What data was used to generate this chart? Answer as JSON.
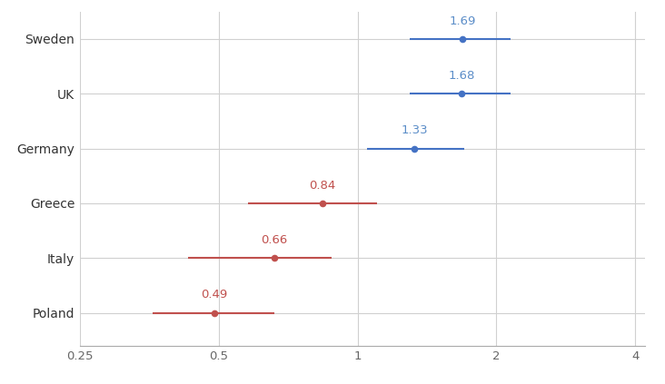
{
  "countries": [
    "Sweden",
    "UK",
    "Germany",
    "Greece",
    "Italy",
    "Poland"
  ],
  "values": [
    1.69,
    1.68,
    1.33,
    0.84,
    0.66,
    0.49
  ],
  "ci_lower": [
    1.3,
    1.3,
    1.05,
    0.58,
    0.43,
    0.36
  ],
  "ci_upper": [
    2.15,
    2.15,
    1.7,
    1.1,
    0.88,
    0.66
  ],
  "colors": [
    "#4472C4",
    "#4472C4",
    "#4472C4",
    "#C0504D",
    "#C0504D",
    "#C0504D"
  ],
  "label_colors": [
    "#5B8DC8",
    "#5B8DC8",
    "#5B8DC8",
    "#C0504D",
    "#C0504D",
    "#C0504D"
  ],
  "background_color": "#ffffff",
  "grid_color": "#d0d0d0",
  "xmin": 0.25,
  "xmax": 4.2,
  "xticks": [
    0.25,
    0.5,
    1.0,
    2.0,
    4.0
  ],
  "xtick_labels": [
    "0.25",
    "0.5",
    "1",
    "2",
    "4"
  ],
  "label_offset": [
    0.18,
    0.18,
    0.18,
    0.18,
    0.18,
    0.18
  ]
}
